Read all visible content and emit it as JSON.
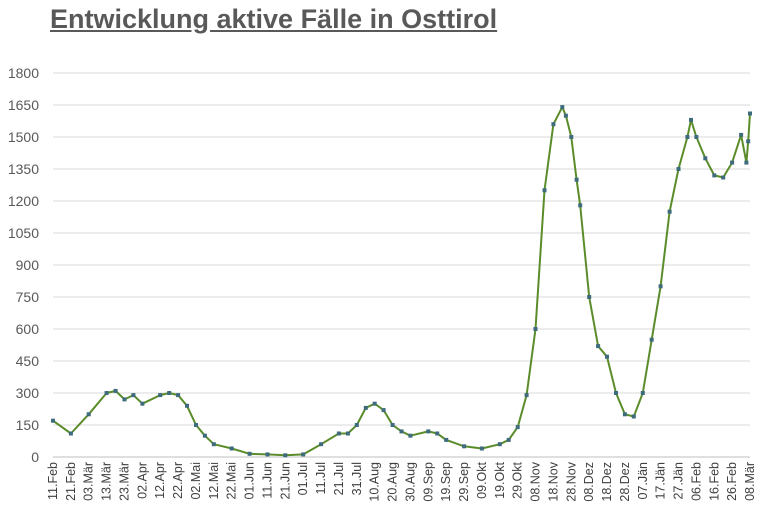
{
  "chart_data": {
    "type": "line",
    "title": "Entwicklung aktive Fälle in Osttirol",
    "xlabel": "",
    "ylabel": "",
    "ylim": [
      0,
      1800
    ],
    "yticks": [
      0,
      150,
      300,
      450,
      600,
      750,
      900,
      1050,
      1200,
      1350,
      1500,
      1650,
      1800
    ],
    "grid": true,
    "legend": "none",
    "x_tick_labels": [
      "11.Feb",
      "21.Feb",
      "03.Mär",
      "13.Mär",
      "23.Mär",
      "02.Apr",
      "12.Apr",
      "22.Apr",
      "02.Mai",
      "12.Mai",
      "22.Mai",
      "01.Jun",
      "11.Jun",
      "21.Jun",
      "01.Jul",
      "11.Jul",
      "21.Jul",
      "31.Jul",
      "10.Aug",
      "20.Aug",
      "30.Aug",
      "09.Sep",
      "19.Sep",
      "29.Sep",
      "09.Okt",
      "19.Okt",
      "29.Okt",
      "08.Nov",
      "18.Nov",
      "28.Nov",
      "08.Dez",
      "18.Dez",
      "28.Dez",
      "07.Jän",
      "17.Jän",
      "27.Jän",
      "06.Feb",
      "16.Feb",
      "26.Feb",
      "08.Mär"
    ],
    "series": [
      {
        "line_color": "#5b8c2a",
        "marker_color": "#3e6b7d",
        "x": [
          "11.Feb",
          "21.Feb",
          "03.Mär",
          "13.Mär",
          "18.Mär",
          "23.Mär",
          "28.Mär",
          "02.Apr",
          "12.Apr",
          "17.Apr",
          "22.Apr",
          "27.Apr",
          "02.Mai",
          "07.Mai",
          "12.Mai",
          "22.Mai",
          "01.Jun",
          "11.Jun",
          "21.Jun",
          "01.Jul",
          "11.Jul",
          "21.Jul",
          "26.Jul",
          "31.Jul",
          "05.Aug",
          "10.Aug",
          "15.Aug",
          "20.Aug",
          "25.Aug",
          "30.Aug",
          "09.Sep",
          "14.Sep",
          "19.Sep",
          "29.Sep",
          "09.Okt",
          "19.Okt",
          "24.Okt",
          "29.Okt",
          "03.Nov",
          "08.Nov",
          "13.Nov",
          "18.Nov",
          "23.Nov",
          "25.Nov",
          "28.Nov",
          "01.Dez",
          "03.Dez",
          "08.Dez",
          "13.Dez",
          "18.Dez",
          "23.Dez",
          "28.Dez",
          "02.Jän",
          "07.Jän",
          "12.Jän",
          "17.Jän",
          "22.Jän",
          "27.Jän",
          "01.Feb",
          "03.Feb",
          "06.Feb",
          "11.Feb",
          "16.Feb",
          "21.Feb",
          "26.Feb",
          "03.Mär",
          "06.Mär",
          "07.Mär",
          "08.Mär"
        ],
        "values": [
          170,
          110,
          200,
          300,
          310,
          270,
          290,
          250,
          290,
          300,
          290,
          240,
          150,
          100,
          60,
          40,
          15,
          12,
          8,
          12,
          60,
          110,
          110,
          150,
          230,
          250,
          220,
          150,
          120,
          100,
          120,
          110,
          80,
          50,
          40,
          60,
          80,
          140,
          290,
          600,
          1250,
          1560,
          1640,
          1600,
          1500,
          1300,
          1180,
          750,
          520,
          470,
          300,
          200,
          190,
          300,
          550,
          800,
          1150,
          1350,
          1500,
          1580,
          1500,
          1400,
          1320,
          1310,
          1380,
          1510,
          1380,
          1480,
          1610
        ]
      }
    ]
  }
}
